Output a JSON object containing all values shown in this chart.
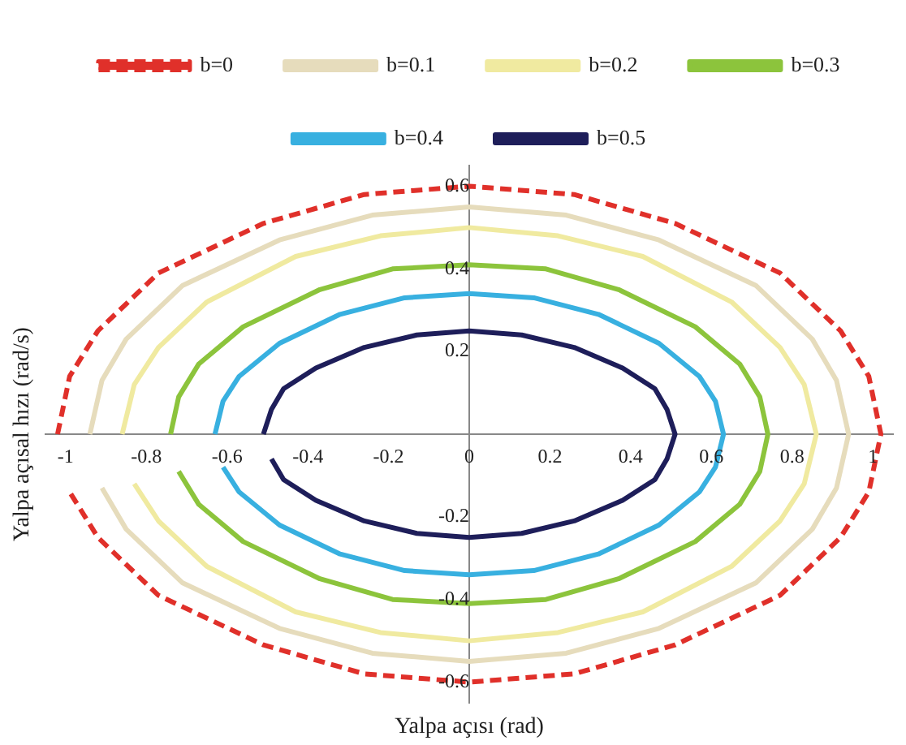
{
  "chart_data": {
    "type": "line",
    "xlabel": "Yalpa açısı (rad)",
    "ylabel": "Yalpa açısal hızı (rad/s)",
    "xlim": [
      -1.05,
      1.05
    ],
    "ylim": [
      -0.65,
      0.65
    ],
    "xticks": [
      -1,
      -0.8,
      -0.6,
      -0.4,
      -0.2,
      0,
      0.2,
      0.4,
      0.6,
      0.8,
      1
    ],
    "yticks": [
      -0.6,
      -0.4,
      -0.2,
      0.2,
      0.4,
      0.6
    ],
    "grid": false,
    "legend": "top",
    "marker": "none",
    "series": [
      {
        "name": "b=0",
        "color": "#e0302a",
        "line_style": "dashed",
        "x": [
          -1.02,
          -0.99,
          -0.92,
          -0.77,
          -0.51,
          -0.26,
          0,
          0.26,
          0.51,
          0.77,
          0.92,
          0.99,
          1.02,
          0.99,
          0.92,
          0.77,
          0.51,
          0.26,
          0,
          -0.26,
          -0.51,
          -0.77,
          -0.92,
          -0.99
        ],
        "values": [
          0,
          0.14,
          0.25,
          0.39,
          0.51,
          0.58,
          0.6,
          0.58,
          0.51,
          0.39,
          0.25,
          0.14,
          0,
          -0.14,
          -0.25,
          -0.39,
          -0.51,
          -0.58,
          -0.6,
          -0.58,
          -0.51,
          -0.39,
          -0.25,
          -0.14
        ]
      },
      {
        "name": "b=0.1",
        "color": "#e6dcbc",
        "x": [
          -0.94,
          -0.91,
          -0.85,
          -0.71,
          -0.47,
          -0.24,
          0,
          0.24,
          0.47,
          0.71,
          0.85,
          0.91,
          0.94,
          0.91,
          0.85,
          0.71,
          0.47,
          0.24,
          0,
          -0.24,
          -0.47,
          -0.71,
          -0.85,
          -0.91
        ],
        "values": [
          0,
          0.13,
          0.23,
          0.36,
          0.47,
          0.53,
          0.55,
          0.53,
          0.47,
          0.36,
          0.23,
          0.13,
          0,
          -0.13,
          -0.23,
          -0.36,
          -0.47,
          -0.53,
          -0.55,
          -0.53,
          -0.47,
          -0.36,
          -0.23,
          -0.13
        ]
      },
      {
        "name": "b=0.2",
        "color": "#f0eaa0",
        "x": [
          -0.86,
          -0.83,
          -0.77,
          -0.65,
          -0.43,
          -0.22,
          0,
          0.22,
          0.43,
          0.65,
          0.77,
          0.83,
          0.86,
          0.83,
          0.77,
          0.65,
          0.43,
          0.22,
          0,
          -0.22,
          -0.43,
          -0.65,
          -0.77,
          -0.83
        ],
        "values": [
          0,
          0.12,
          0.21,
          0.32,
          0.43,
          0.48,
          0.5,
          0.48,
          0.43,
          0.32,
          0.21,
          0.12,
          0,
          -0.12,
          -0.21,
          -0.32,
          -0.43,
          -0.48,
          -0.5,
          -0.48,
          -0.43,
          -0.32,
          -0.21,
          -0.12
        ]
      },
      {
        "name": "b=0.3",
        "color": "#8cc43c",
        "x": [
          -0.74,
          -0.72,
          -0.67,
          -0.56,
          -0.37,
          -0.19,
          0,
          0.19,
          0.37,
          0.56,
          0.67,
          0.72,
          0.74,
          0.72,
          0.67,
          0.56,
          0.37,
          0.19,
          0,
          -0.19,
          -0.37,
          -0.56,
          -0.67,
          -0.72
        ],
        "values": [
          0,
          0.09,
          0.17,
          0.26,
          0.35,
          0.4,
          0.41,
          0.4,
          0.35,
          0.26,
          0.17,
          0.09,
          0,
          -0.09,
          -0.17,
          -0.26,
          -0.35,
          -0.4,
          -0.41,
          -0.4,
          -0.35,
          -0.26,
          -0.17,
          -0.09
        ]
      },
      {
        "name": "b=0.4",
        "color": "#38b0e0",
        "x": [
          -0.63,
          -0.61,
          -0.57,
          -0.47,
          -0.32,
          -0.16,
          0,
          0.16,
          0.32,
          0.47,
          0.57,
          0.61,
          0.63,
          0.61,
          0.57,
          0.47,
          0.32,
          0.16,
          0,
          -0.16,
          -0.32,
          -0.47,
          -0.57,
          -0.61
        ],
        "values": [
          0,
          0.08,
          0.14,
          0.22,
          0.29,
          0.33,
          0.34,
          0.33,
          0.29,
          0.22,
          0.14,
          0.08,
          0,
          -0.08,
          -0.14,
          -0.22,
          -0.29,
          -0.33,
          -0.34,
          -0.33,
          -0.29,
          -0.22,
          -0.14,
          -0.08
        ]
      },
      {
        "name": "b=0.5",
        "color": "#1e1e5a",
        "x": [
          -0.51,
          -0.49,
          -0.46,
          -0.38,
          -0.26,
          -0.13,
          0,
          0.13,
          0.26,
          0.38,
          0.46,
          0.49,
          0.51,
          0.49,
          0.46,
          0.38,
          0.26,
          0.13,
          0,
          -0.13,
          -0.26,
          -0.38,
          -0.46,
          -0.49
        ],
        "values": [
          0,
          0.06,
          0.11,
          0.16,
          0.21,
          0.24,
          0.25,
          0.24,
          0.21,
          0.16,
          0.11,
          0.06,
          0,
          -0.06,
          -0.11,
          -0.16,
          -0.21,
          -0.24,
          -0.25,
          -0.24,
          -0.21,
          -0.16,
          -0.11,
          -0.06
        ]
      }
    ]
  }
}
